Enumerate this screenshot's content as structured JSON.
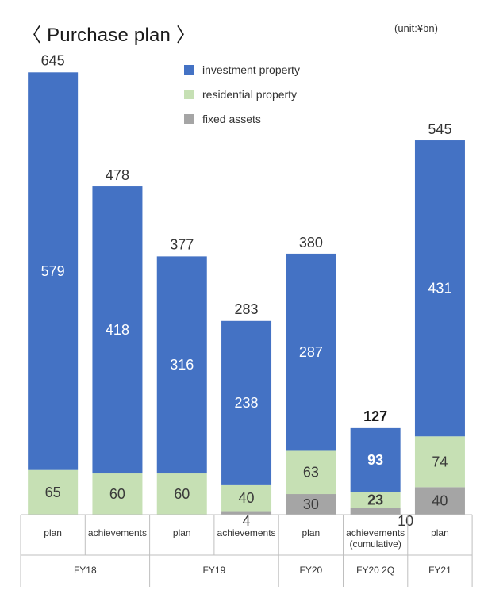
{
  "header": {
    "title": "〈 Purchase plan 〉",
    "unit": "(unit:¥bn)"
  },
  "colors": {
    "investment": "#4472C4",
    "residential": "#C6E0B4",
    "fixed": "#A5A5A5",
    "grid": "#BFBFBF"
  },
  "chart_data": {
    "type": "bar",
    "stacked": true,
    "categories": [
      "plan",
      "achievements",
      "plan",
      "achievements",
      "plan",
      "achievements\n(cumulative)",
      "plan"
    ],
    "groups": [
      {
        "label": "FY18",
        "span": 2
      },
      {
        "label": "FY19",
        "span": 2
      },
      {
        "label": "FY20",
        "span": 1
      },
      {
        "label": "FY20 2Q",
        "span": 1
      },
      {
        "label": "FY21",
        "span": 1
      }
    ],
    "series": [
      {
        "name": "fixed assets",
        "color": "#A5A5A5",
        "values": [
          0,
          0,
          0,
          4,
          30,
          10,
          40
        ]
      },
      {
        "name": "residential property",
        "color": "#C6E0B4",
        "values": [
          65,
          60,
          60,
          40,
          63,
          23,
          74
        ]
      },
      {
        "name": "investment property",
        "color": "#4472C4",
        "values": [
          579,
          418,
          316,
          238,
          287,
          93,
          431
        ]
      }
    ],
    "totals": [
      645,
      478,
      377,
      283,
      380,
      127,
      545
    ],
    "legend": [
      "investment property",
      "residential property",
      "fixed assets"
    ],
    "ylim": [
      0,
      660
    ]
  }
}
